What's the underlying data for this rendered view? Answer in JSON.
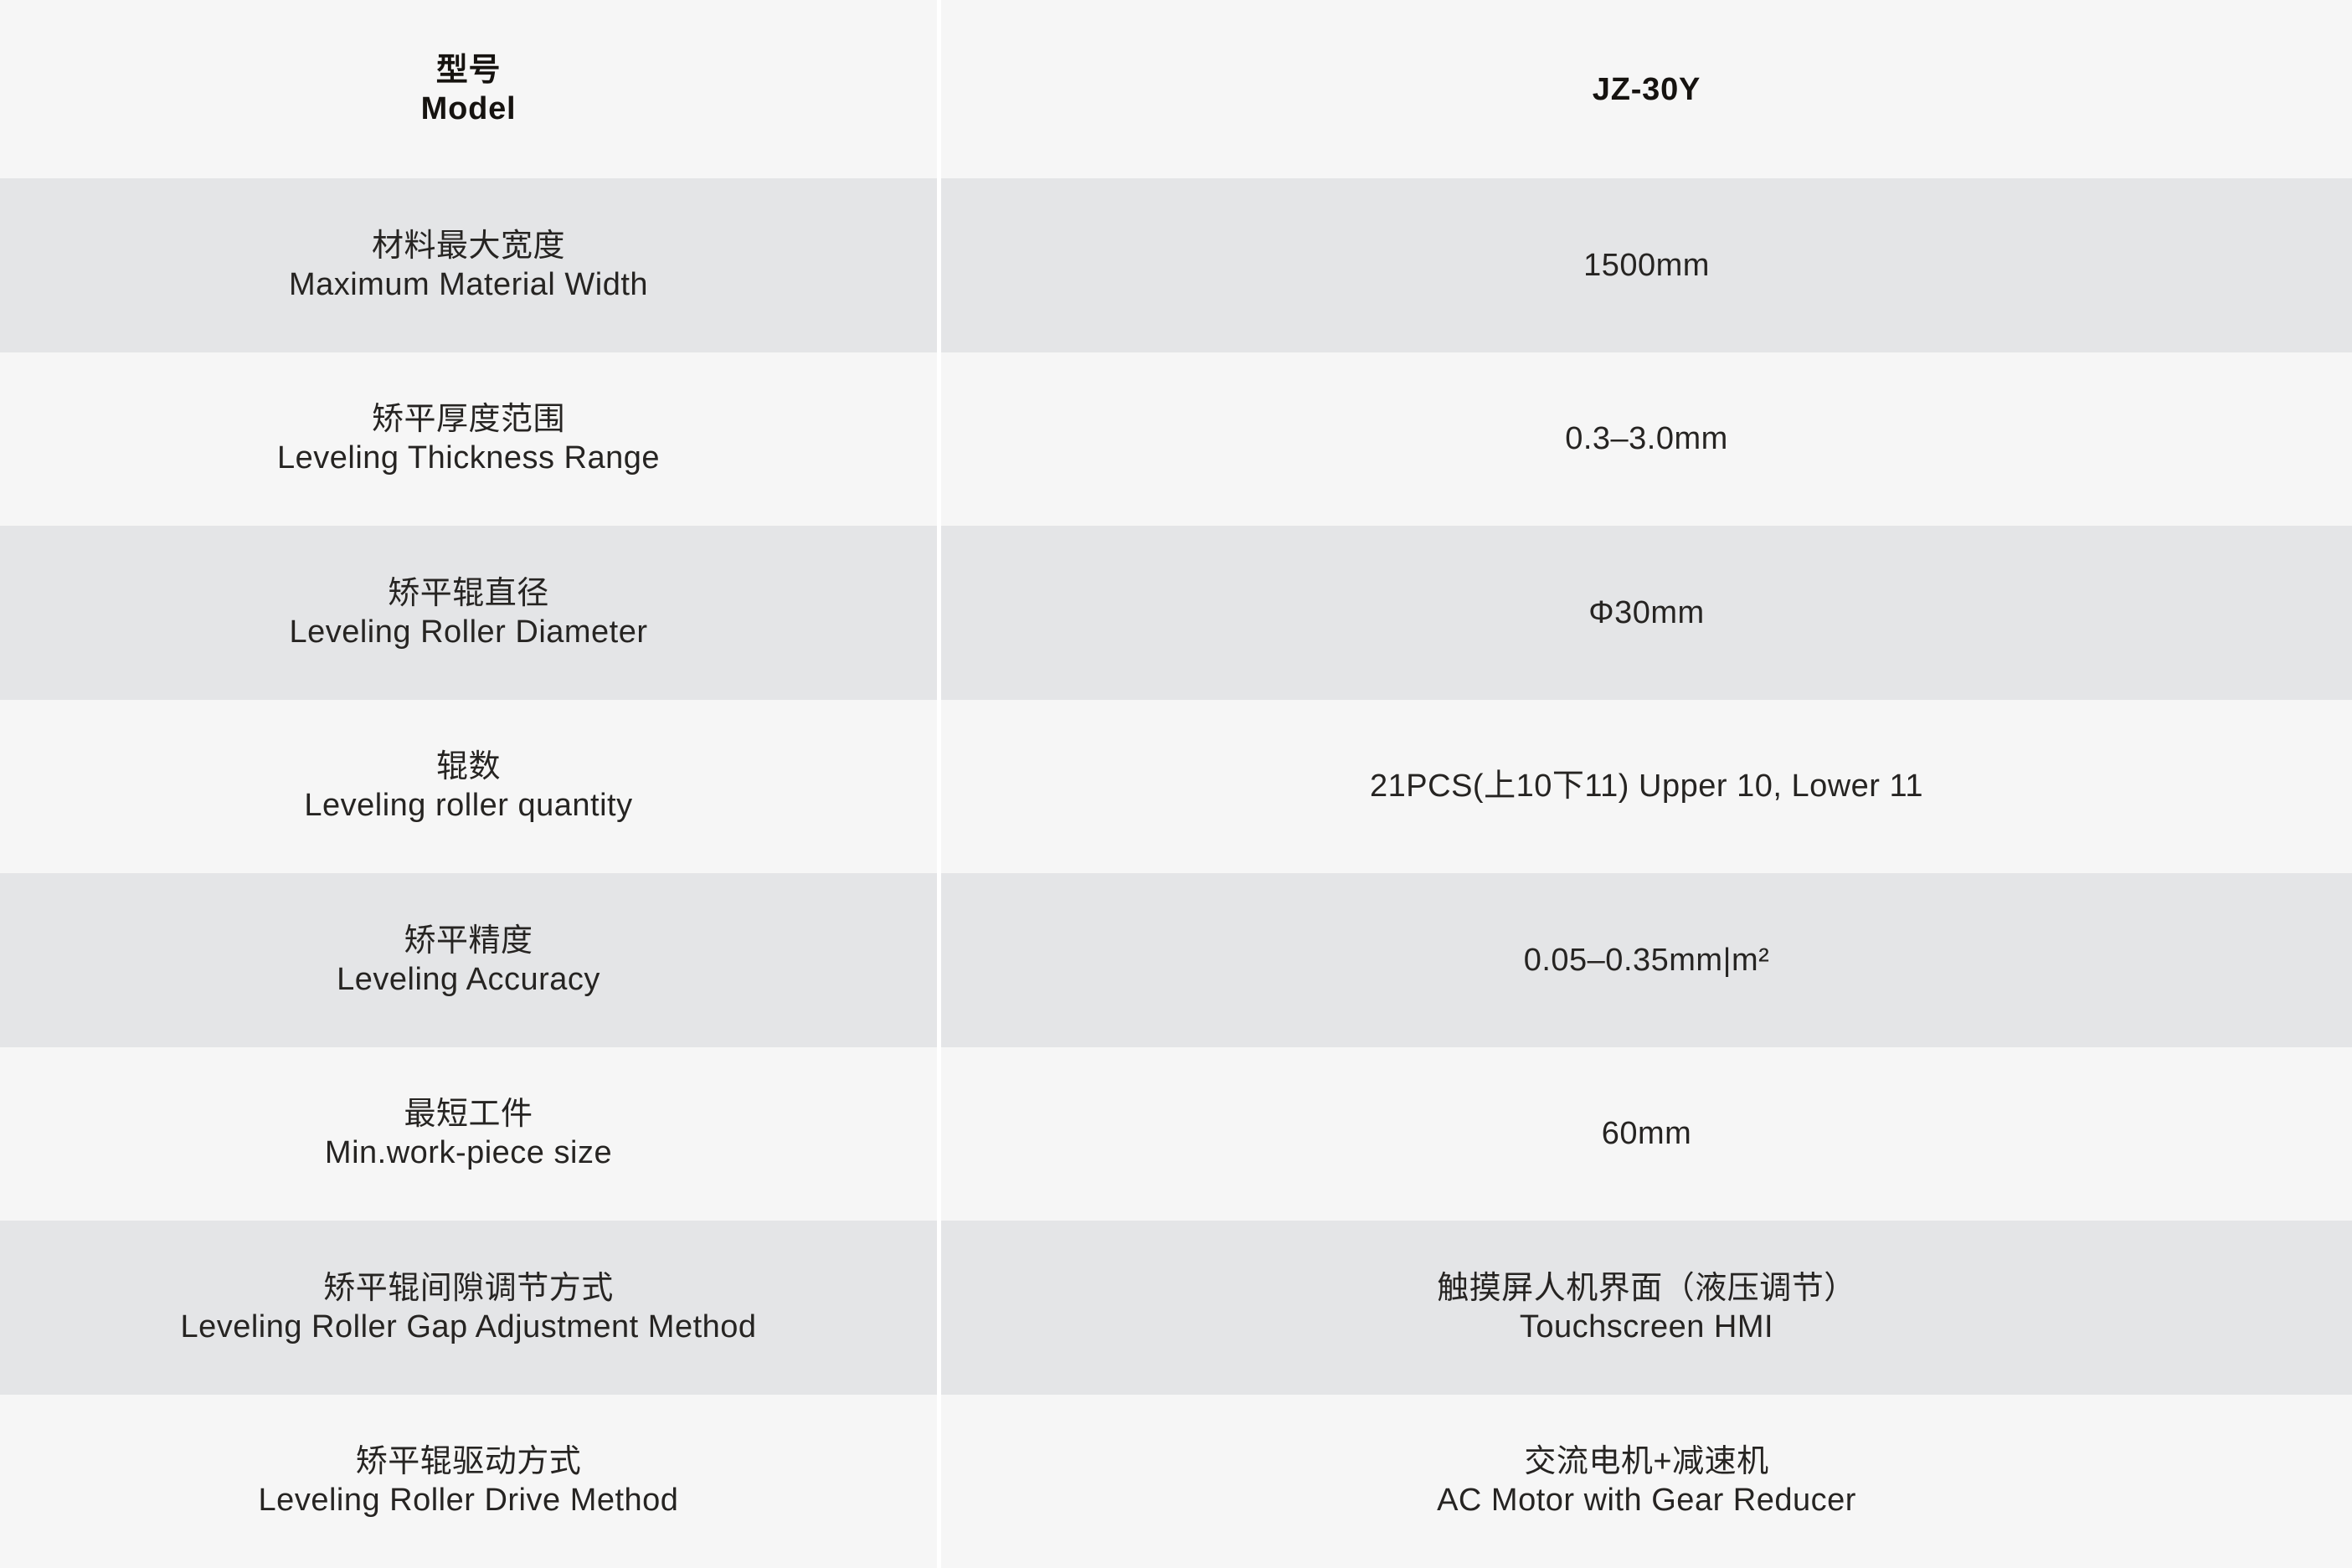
{
  "table": {
    "header": {
      "label_zh": "型号",
      "label_en": "Model",
      "value": "JZ-30Y"
    },
    "rows": [
      {
        "key": "max-material-width",
        "label_zh": "材料最大宽度",
        "label_en": "Maximum Material Width",
        "value_lines": [
          "1500mm"
        ]
      },
      {
        "key": "leveling-thickness-range",
        "label_zh": "矫平厚度范围",
        "label_en": "Leveling Thickness Range",
        "value_lines": [
          "0.3–3.0mm"
        ]
      },
      {
        "key": "leveling-roller-diameter",
        "label_zh": "矫平辊直径",
        "label_en": "Leveling Roller Diameter",
        "value_lines": [
          "Φ30mm"
        ]
      },
      {
        "key": "leveling-roller-quantity",
        "label_zh": "辊数",
        "label_en": "Leveling roller quantity",
        "value_lines": [
          "21PCS(上10下11) Upper 10, Lower 11"
        ]
      },
      {
        "key": "leveling-accuracy",
        "label_zh": "矫平精度",
        "label_en": "Leveling Accuracy",
        "value_lines": [
          "0.05–0.35mm|m²"
        ]
      },
      {
        "key": "min-workpiece-size",
        "label_zh": "最短工件",
        "label_en": "Min.work-piece size",
        "value_lines": [
          "60mm"
        ]
      },
      {
        "key": "roller-gap-adjustment-method",
        "label_zh": "矫平辊间隙调节方式",
        "label_en": "Leveling Roller Gap Adjustment Method",
        "value_lines": [
          "触摸屏人机界面（液压调节）",
          "Touchscreen HMI"
        ]
      },
      {
        "key": "roller-drive-method",
        "label_zh": "矫平辊驱动方式",
        "label_en": "Leveling Roller Drive Method",
        "value_lines": [
          "交流电机+减速机",
          "AC Motor with Gear Reducer"
        ]
      }
    ],
    "colors": {
      "row_light": "#f6f6f6",
      "row_gray": "#e4e5e7",
      "divider": "#ffffff",
      "text_body": "#262422",
      "text_header": "#161310"
    }
  }
}
